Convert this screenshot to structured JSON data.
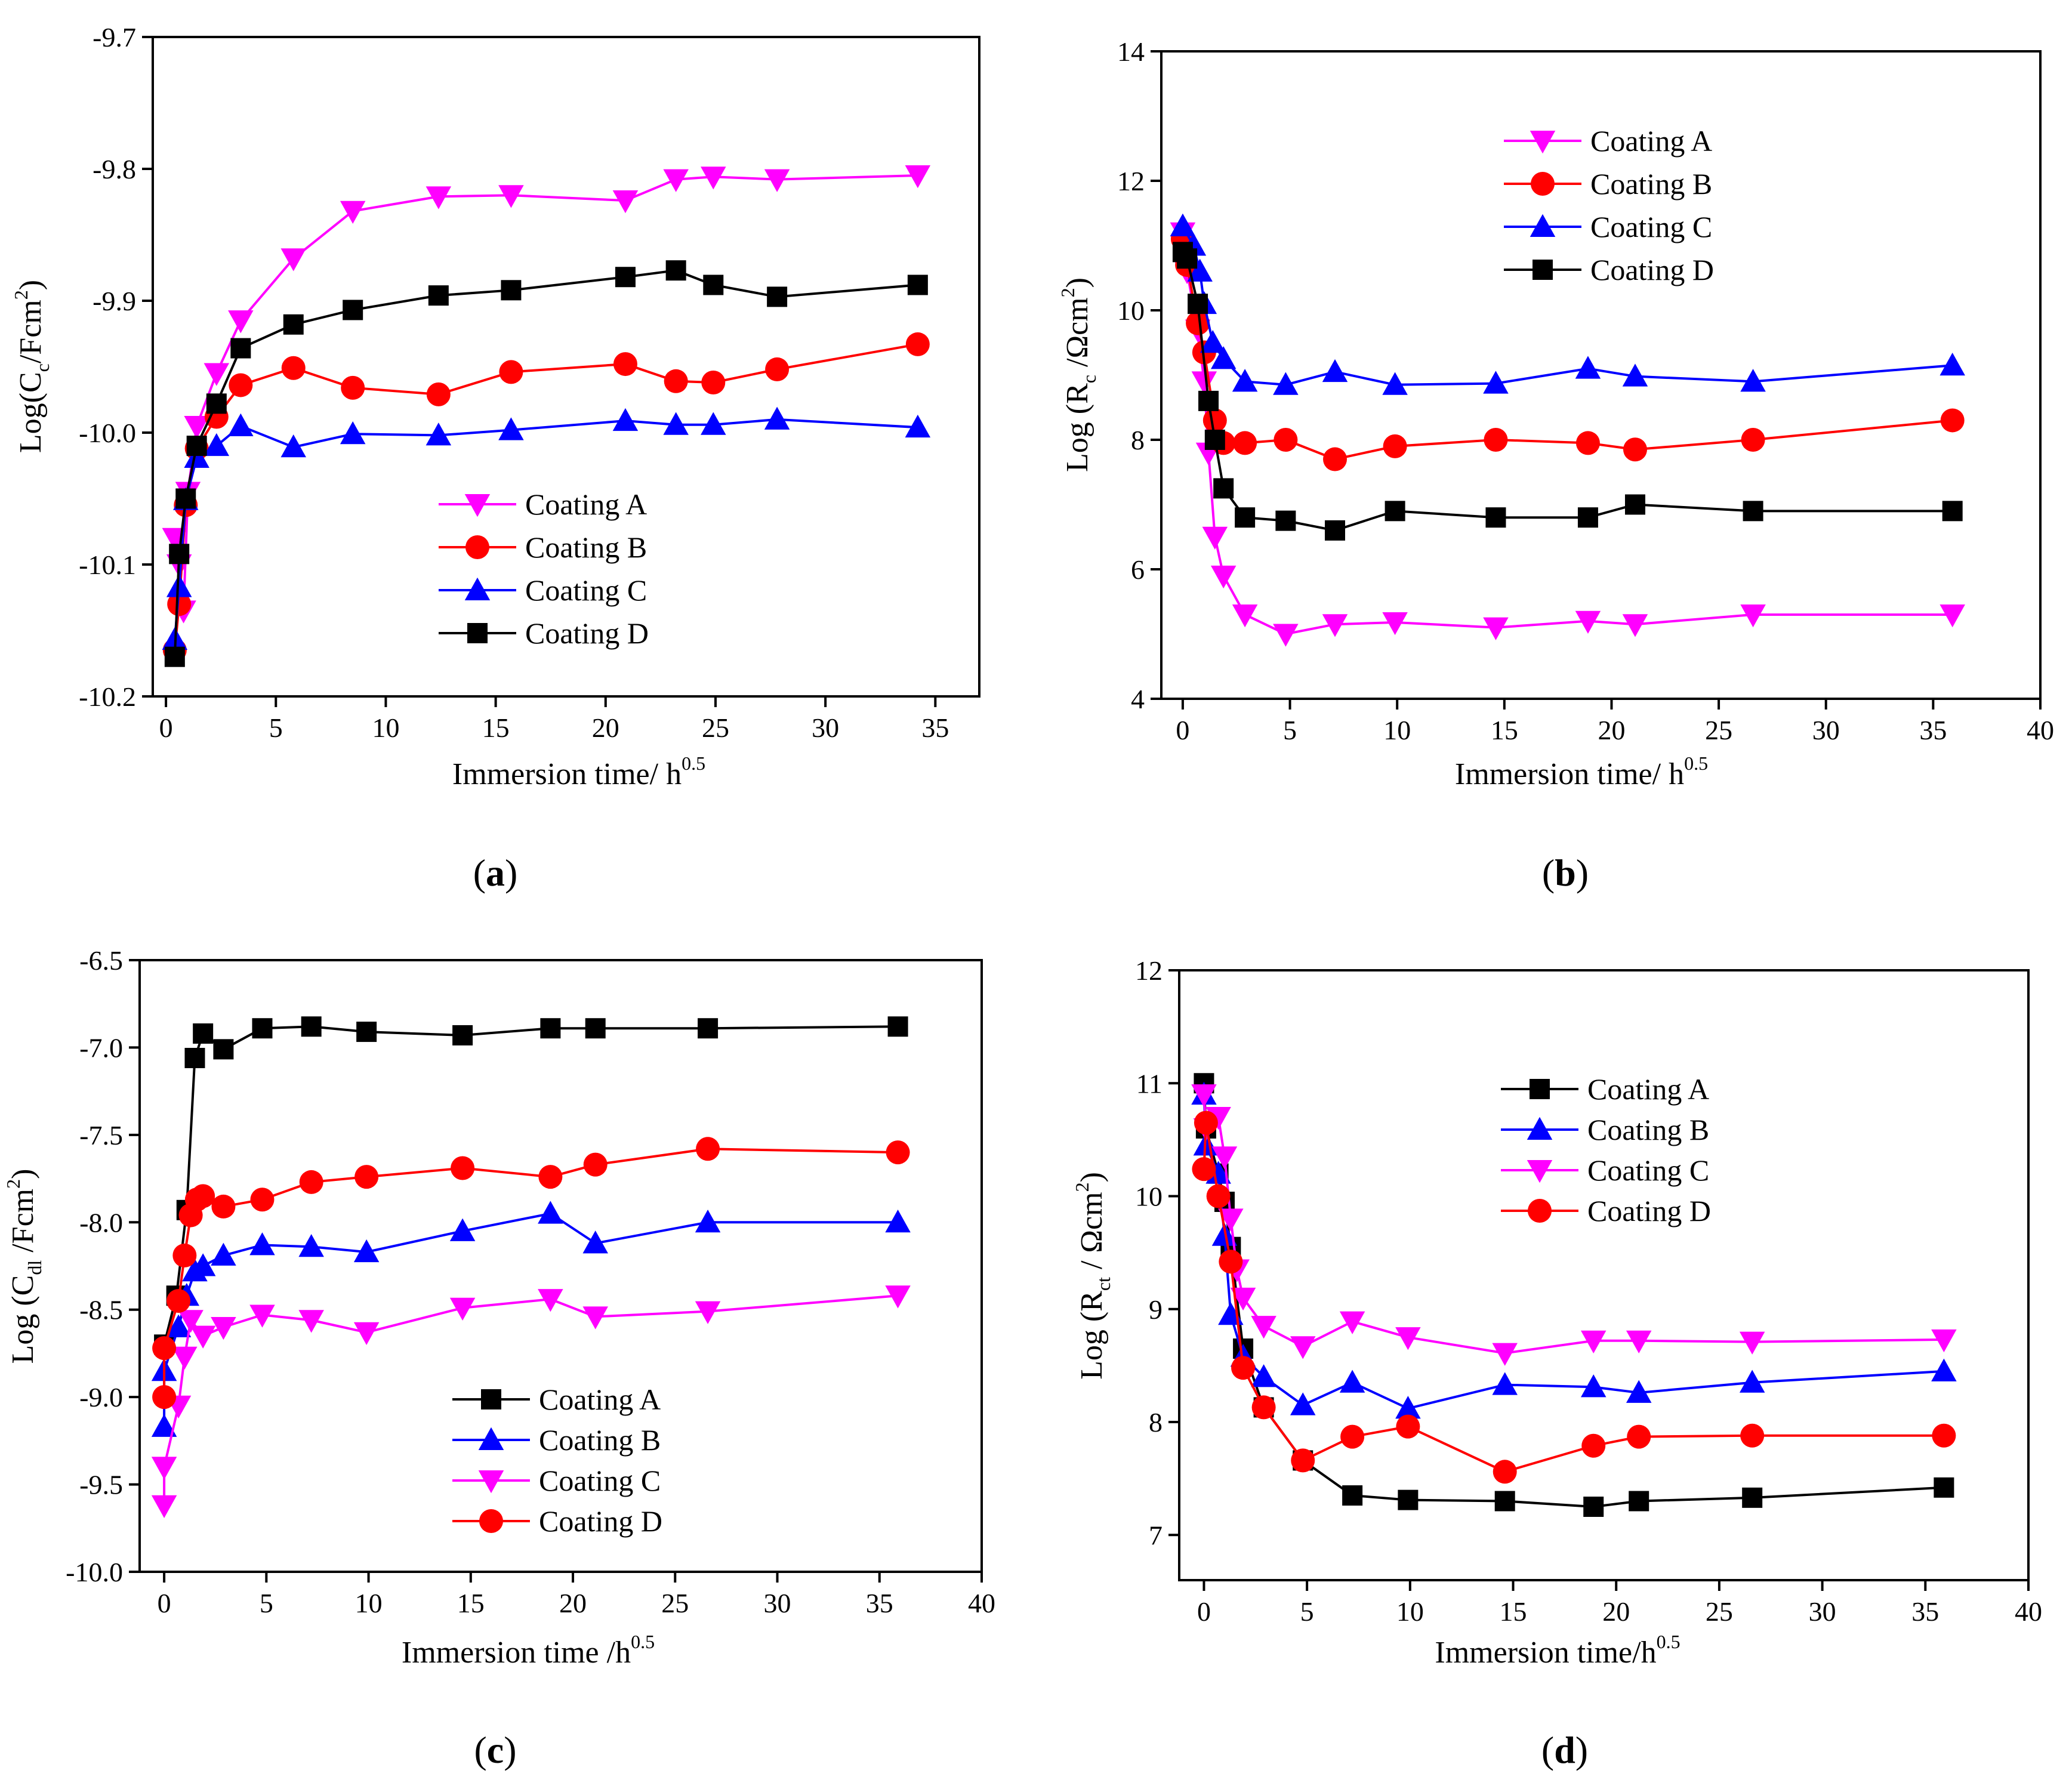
{
  "colors": {
    "magenta": "#ff00ff",
    "red": "#ff0000",
    "blue": "#0000ff",
    "black": "#000000"
  },
  "chart_data": [
    {
      "id": "a",
      "type": "line",
      "panel_label": "a",
      "xlabel": {
        "main": "Immersion time/ h",
        "sup": "0.5"
      },
      "ylabel": {
        "pre": "Log(C",
        "sub": "c",
        "mid": "/Fcm",
        "sup": "2",
        "post": ")"
      },
      "xlim": [
        -0.6,
        37
      ],
      "ylim": [
        -10.2,
        -9.7
      ],
      "xticks": [
        0,
        5,
        10,
        15,
        20,
        25,
        30,
        35
      ],
      "xtick_labels": [
        "0",
        "5",
        "10",
        "15",
        "20",
        "25",
        "30",
        "35"
      ],
      "yticks": [
        -10.2,
        -10.1,
        -10.0,
        -9.9,
        -9.8,
        -9.7
      ],
      "ytick_labels": [
        "-10.2",
        "-10.1",
        "-10.0",
        "-9.9",
        "-9.8",
        "-9.7"
      ],
      "legend_position": "center-right",
      "series": [
        {
          "name": "Coating A",
          "marker": "triangle-down",
          "color": "#ff00ff",
          "x": [
            0.4,
            0.6,
            0.8,
            1.0,
            1.4,
            2.3,
            3.4,
            5.8,
            8.5,
            12.4,
            15.7,
            20.9,
            23.2,
            24.9,
            27.8,
            34.2
          ],
          "y": [
            -10.08,
            -10.1,
            -10.135,
            -10.045,
            -9.995,
            -9.955,
            -9.915,
            -9.868,
            -9.832,
            -9.821,
            -9.82,
            -9.824,
            -9.808,
            -9.806,
            -9.808,
            -9.805
          ]
        },
        {
          "name": "Coating B",
          "marker": "circle",
          "color": "#ff0000",
          "x": [
            0.4,
            0.6,
            0.9,
            1.4,
            2.3,
            3.4,
            5.8,
            8.5,
            12.4,
            15.7,
            20.9,
            23.2,
            24.9,
            27.8,
            34.2
          ],
          "y": [
            -10.165,
            -10.13,
            -10.055,
            -10.012,
            -9.988,
            -9.964,
            -9.951,
            -9.966,
            -9.971,
            -9.954,
            -9.948,
            -9.961,
            -9.962,
            -9.952,
            -9.933
          ]
        },
        {
          "name": "Coating C",
          "marker": "triangle-up",
          "color": "#0000ff",
          "x": [
            0.4,
            0.6,
            0.9,
            1.4,
            2.3,
            3.4,
            5.8,
            8.5,
            12.4,
            15.7,
            20.9,
            23.2,
            24.9,
            27.8,
            34.2
          ],
          "y": [
            -10.157,
            -10.117,
            -10.051,
            -10.019,
            -10.01,
            -9.995,
            -10.011,
            -10.001,
            -10.002,
            -9.998,
            -9.991,
            -9.994,
            -9.994,
            -9.99,
            -9.996
          ]
        },
        {
          "name": "Coating D",
          "marker": "square",
          "color": "#000000",
          "x": [
            0.4,
            0.6,
            0.9,
            1.4,
            2.3,
            3.4,
            5.8,
            8.5,
            12.4,
            15.7,
            20.9,
            23.2,
            24.9,
            27.8,
            34.2
          ],
          "y": [
            -10.17,
            -10.092,
            -10.05,
            -10.01,
            -9.978,
            -9.936,
            -9.918,
            -9.907,
            -9.896,
            -9.892,
            -9.882,
            -9.877,
            -9.888,
            -9.897,
            -9.888
          ]
        }
      ]
    },
    {
      "id": "b",
      "type": "line",
      "panel_label": "b",
      "xlabel": {
        "main": "Immersion time/ h",
        "sup": "0.5"
      },
      "ylabel": {
        "pre": "Log (R",
        "sub": "c",
        "mid": " /Ωcm",
        "sup": "2",
        "post": ")"
      },
      "xlim": [
        -1,
        40
      ],
      "ylim": [
        4,
        14
      ],
      "xticks": [
        0,
        5,
        10,
        15,
        20,
        25,
        30,
        35,
        40
      ],
      "xtick_labels": [
        "0",
        "5",
        "10",
        "15",
        "20",
        "25",
        "30",
        "35",
        "40"
      ],
      "yticks": [
        4,
        6,
        8,
        10,
        12,
        14
      ],
      "ytick_labels": [
        "4",
        "6",
        "8",
        "10",
        "12",
        "14"
      ],
      "legend_position": "top-center",
      "series": [
        {
          "name": "Coating A",
          "marker": "triangle-down",
          "color": "#ff00ff",
          "x": [
            0.0,
            0.2,
            0.7,
            1.0,
            1.2,
            1.5,
            1.9,
            2.9,
            4.8,
            7.1,
            9.9,
            14.6,
            18.9,
            21.1,
            26.6,
            35.9
          ],
          "y": [
            11.2,
            10.6,
            9.7,
            8.9,
            7.8,
            6.5,
            5.9,
            5.3,
            5.0,
            5.15,
            5.18,
            5.1,
            5.2,
            5.15,
            5.3,
            5.3
          ]
        },
        {
          "name": "Coating B",
          "marker": "circle",
          "color": "#ff0000",
          "x": [
            0.0,
            0.2,
            0.7,
            1.0,
            1.5,
            1.9,
            2.9,
            4.8,
            7.1,
            9.9,
            14.6,
            18.9,
            21.1,
            26.6,
            35.9
          ],
          "y": [
            11.1,
            10.7,
            9.8,
            9.35,
            8.3,
            7.95,
            7.95,
            8.0,
            7.7,
            7.9,
            8.0,
            7.95,
            7.85,
            8.0,
            8.3
          ]
        },
        {
          "name": "Coating C",
          "marker": "triangle-up",
          "color": "#0000ff",
          "x": [
            0.0,
            0.5,
            0.8,
            1.0,
            1.4,
            1.9,
            2.9,
            4.8,
            7.1,
            9.9,
            14.6,
            18.9,
            21.1,
            26.6,
            35.9
          ],
          "y": [
            11.3,
            11.0,
            10.6,
            10.1,
            9.5,
            9.25,
            8.9,
            8.85,
            9.05,
            8.85,
            8.87,
            9.1,
            8.98,
            8.9,
            9.15
          ]
        },
        {
          "name": "Coating D",
          "marker": "square",
          "color": "#000000",
          "x": [
            0.0,
            0.2,
            0.7,
            1.2,
            1.5,
            1.9,
            2.9,
            4.8,
            7.1,
            9.9,
            14.6,
            18.9,
            21.1,
            26.6,
            35.9
          ],
          "y": [
            10.9,
            10.8,
            10.1,
            8.6,
            8.0,
            7.25,
            6.8,
            6.75,
            6.6,
            6.9,
            6.8,
            6.8,
            7.0,
            6.9,
            6.9
          ]
        }
      ]
    },
    {
      "id": "c",
      "type": "line",
      "panel_label": "c",
      "xlabel": {
        "main": "Immersion time /h",
        "sup": "0.5"
      },
      "ylabel": {
        "pre": "Log (C",
        "sub": "dl",
        "mid": " /Fcm",
        "sup": "2",
        "post": ")"
      },
      "xlim": [
        -1.2,
        40
      ],
      "ylim": [
        -10.0,
        -6.5
      ],
      "xticks": [
        0,
        5,
        10,
        15,
        20,
        25,
        30,
        35,
        40
      ],
      "xtick_labels": [
        "0",
        "5",
        "10",
        "15",
        "20",
        "25",
        "30",
        "35",
        "40"
      ],
      "yticks": [
        -10.0,
        -9.5,
        -9.0,
        -8.5,
        -8.0,
        -7.5,
        -7.0,
        -6.5
      ],
      "ytick_labels": [
        "-10.0",
        "-9.5",
        "-9.0",
        "-8.5",
        "-8.0",
        "-7.5",
        "-7.0",
        "-6.5"
      ],
      "legend_position": "bottom-center",
      "series": [
        {
          "name": "Coating A",
          "marker": "square",
          "color": "#000000",
          "x": [
            0.0,
            0.6,
            1.1,
            1.5,
            1.9,
            2.9,
            4.8,
            7.2,
            9.9,
            14.6,
            18.9,
            21.1,
            26.6,
            35.9
          ],
          "y": [
            -8.7,
            -8.42,
            -7.93,
            -7.06,
            -6.92,
            -7.01,
            -6.89,
            -6.88,
            -6.91,
            -6.93,
            -6.89,
            -6.89,
            -6.89,
            -6.88
          ]
        },
        {
          "name": "Coating B",
          "marker": "triangle-up",
          "color": "#0000ff",
          "x": [
            0.0,
            0.0,
            0.7,
            1.1,
            1.5,
            1.9,
            2.9,
            4.8,
            7.2,
            9.9,
            14.6,
            18.9,
            21.1,
            26.6,
            35.9
          ],
          "y": [
            -9.17,
            -8.85,
            -8.6,
            -8.42,
            -8.28,
            -8.25,
            -8.19,
            -8.13,
            -8.14,
            -8.17,
            -8.05,
            -7.95,
            -8.12,
            -8.0,
            -8.0
          ]
        },
        {
          "name": "Coating C",
          "marker": "triangle-down",
          "color": "#ff00ff",
          "x": [
            0.0,
            0.0,
            0.7,
            1.0,
            1.3,
            1.9,
            2.9,
            4.8,
            7.2,
            9.9,
            14.6,
            18.9,
            21.1,
            26.6,
            35.9
          ],
          "y": [
            -9.62,
            -9.4,
            -9.05,
            -8.77,
            -8.56,
            -8.65,
            -8.6,
            -8.53,
            -8.56,
            -8.63,
            -8.49,
            -8.44,
            -8.54,
            -8.51,
            -8.42
          ]
        },
        {
          "name": "Coating D",
          "marker": "circle",
          "color": "#ff0000",
          "x": [
            0.0,
            0.0,
            0.7,
            1.0,
            1.3,
            1.6,
            1.9,
            2.9,
            4.8,
            7.2,
            9.9,
            14.6,
            18.9,
            21.1,
            26.6,
            35.9
          ],
          "y": [
            -9.0,
            -8.72,
            -8.45,
            -8.19,
            -7.96,
            -7.87,
            -7.85,
            -7.91,
            -7.87,
            -7.77,
            -7.74,
            -7.69,
            -7.74,
            -7.67,
            -7.58,
            -7.6
          ]
        }
      ]
    },
    {
      "id": "d",
      "type": "line",
      "panel_label": "d",
      "xlabel": {
        "main": "Immersion time/h",
        "sup": "0.5"
      },
      "ylabel": {
        "pre": "Log (R",
        "sub": "ct",
        "mid": " / Ωcm",
        "sup": "2",
        "post": ")"
      },
      "xlim": [
        -1.2,
        40
      ],
      "ylim": [
        6.6,
        12
      ],
      "xticks": [
        0,
        5,
        10,
        15,
        20,
        25,
        30,
        35,
        40
      ],
      "xtick_labels": [
        "0",
        "5",
        "10",
        "15",
        "20",
        "25",
        "30",
        "35",
        "40"
      ],
      "yticks": [
        7,
        8,
        9,
        10,
        11,
        12
      ],
      "ytick_labels": [
        "7",
        "8",
        "9",
        "10",
        "11",
        "12"
      ],
      "legend_position": "top-center",
      "series": [
        {
          "name": "Coating A",
          "marker": "square",
          "color": "#000000",
          "x": [
            0.0,
            0.1,
            0.7,
            1.0,
            1.3,
            1.9,
            2.9,
            4.8,
            7.2,
            9.9,
            14.6,
            18.9,
            21.1,
            26.6,
            35.9
          ],
          "y": [
            11.0,
            10.6,
            10.2,
            9.95,
            9.55,
            8.65,
            8.13,
            7.66,
            7.35,
            7.31,
            7.3,
            7.25,
            7.3,
            7.33,
            7.42
          ]
        },
        {
          "name": "Coating B",
          "marker": "triangle-up",
          "color": "#0000ff",
          "x": [
            0.0,
            0.1,
            0.7,
            1.0,
            1.3,
            1.9,
            2.9,
            4.8,
            7.2,
            9.9,
            14.6,
            18.9,
            21.1,
            26.6,
            35.9
          ],
          "y": [
            10.9,
            10.45,
            10.2,
            9.65,
            8.95,
            8.58,
            8.4,
            8.15,
            8.35,
            8.12,
            8.33,
            8.31,
            8.26,
            8.35,
            8.45
          ]
        },
        {
          "name": "Coating C",
          "marker": "triangle-down",
          "color": "#ff00ff",
          "x": [
            0.0,
            0.1,
            0.7,
            1.0,
            1.3,
            1.6,
            1.9,
            2.9,
            4.8,
            7.2,
            9.9,
            14.6,
            18.9,
            21.1,
            26.6,
            35.9
          ],
          "y": [
            10.9,
            10.6,
            10.7,
            10.35,
            9.8,
            9.35,
            9.1,
            8.85,
            8.67,
            8.89,
            8.75,
            8.61,
            8.72,
            8.72,
            8.71,
            8.73
          ]
        },
        {
          "name": "Coating D",
          "marker": "circle",
          "color": "#ff0000",
          "x": [
            0.0,
            0.1,
            0.7,
            1.3,
            1.9,
            2.9,
            4.8,
            7.2,
            9.9,
            14.6,
            18.9,
            21.1,
            26.6,
            35.9
          ],
          "y": [
            10.24,
            10.65,
            10.0,
            9.42,
            8.48,
            8.13,
            7.66,
            7.87,
            7.96,
            7.56,
            7.79,
            7.87,
            7.88,
            7.88
          ]
        }
      ]
    }
  ]
}
